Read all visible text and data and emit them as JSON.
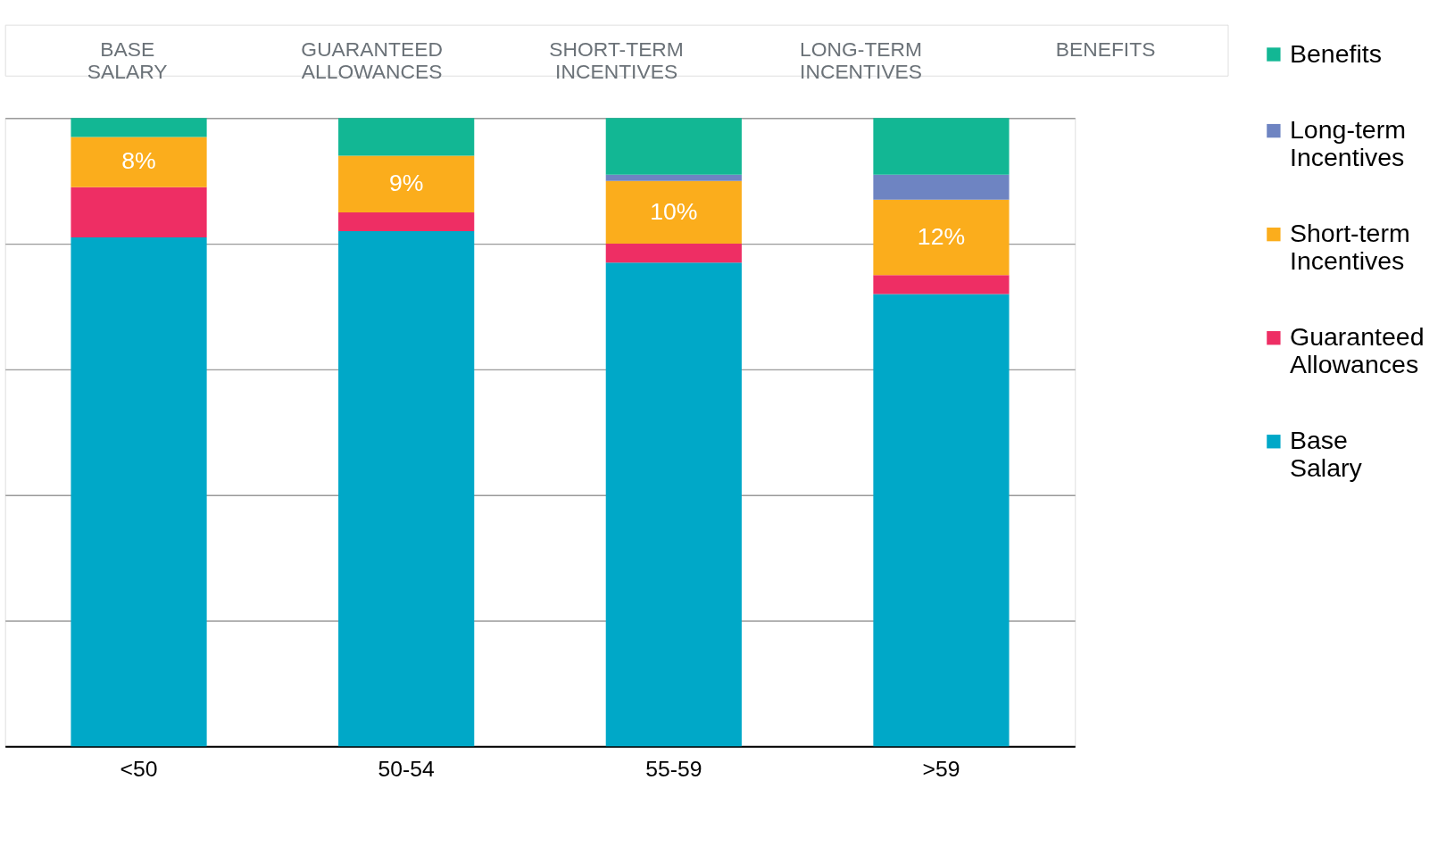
{
  "chart_data": {
    "type": "bar",
    "stacked": true,
    "categories": [
      "<50",
      "50-54",
      "55-59",
      ">59"
    ],
    "series": [
      {
        "name": "Base Salary",
        "color": "#00a8c8",
        "values": [
          81,
          82,
          77,
          72
        ]
      },
      {
        "name": "Guaranteed Allowances",
        "color": "#ee2e64",
        "values": [
          8,
          3,
          3,
          3
        ]
      },
      {
        "name": "Short-term Incentives",
        "color": "#fbad1c",
        "values": [
          8,
          9,
          10,
          12
        ],
        "value_labels": [
          "8%",
          "9%",
          "10%",
          "12%"
        ]
      },
      {
        "name": "Long-term Incentives",
        "color": "#6e84c2",
        "values": [
          0,
          0,
          1,
          4
        ]
      },
      {
        "name": "Benefits",
        "color": "#12b794",
        "values": [
          3,
          6,
          9,
          9
        ]
      }
    ],
    "ylim": [
      0,
      100
    ],
    "yticks": [
      {
        "value": 0,
        "label": null
      },
      {
        "value": 20,
        "label": null
      },
      {
        "value": 40,
        "label": null
      },
      {
        "value": 60,
        "label": null
      },
      {
        "value": 80,
        "label": null
      },
      {
        "value": 100,
        "label": null
      }
    ],
    "tick_labels": "x",
    "grid": "y",
    "legend": "right",
    "annotations": [
      "BASE SALARY",
      "GUARANTEED ALLOWANCES",
      "SHORT-TERM INCENTIVES",
      "LONG-TERM INCENTIVES",
      "BENEFITS"
    ]
  }
}
